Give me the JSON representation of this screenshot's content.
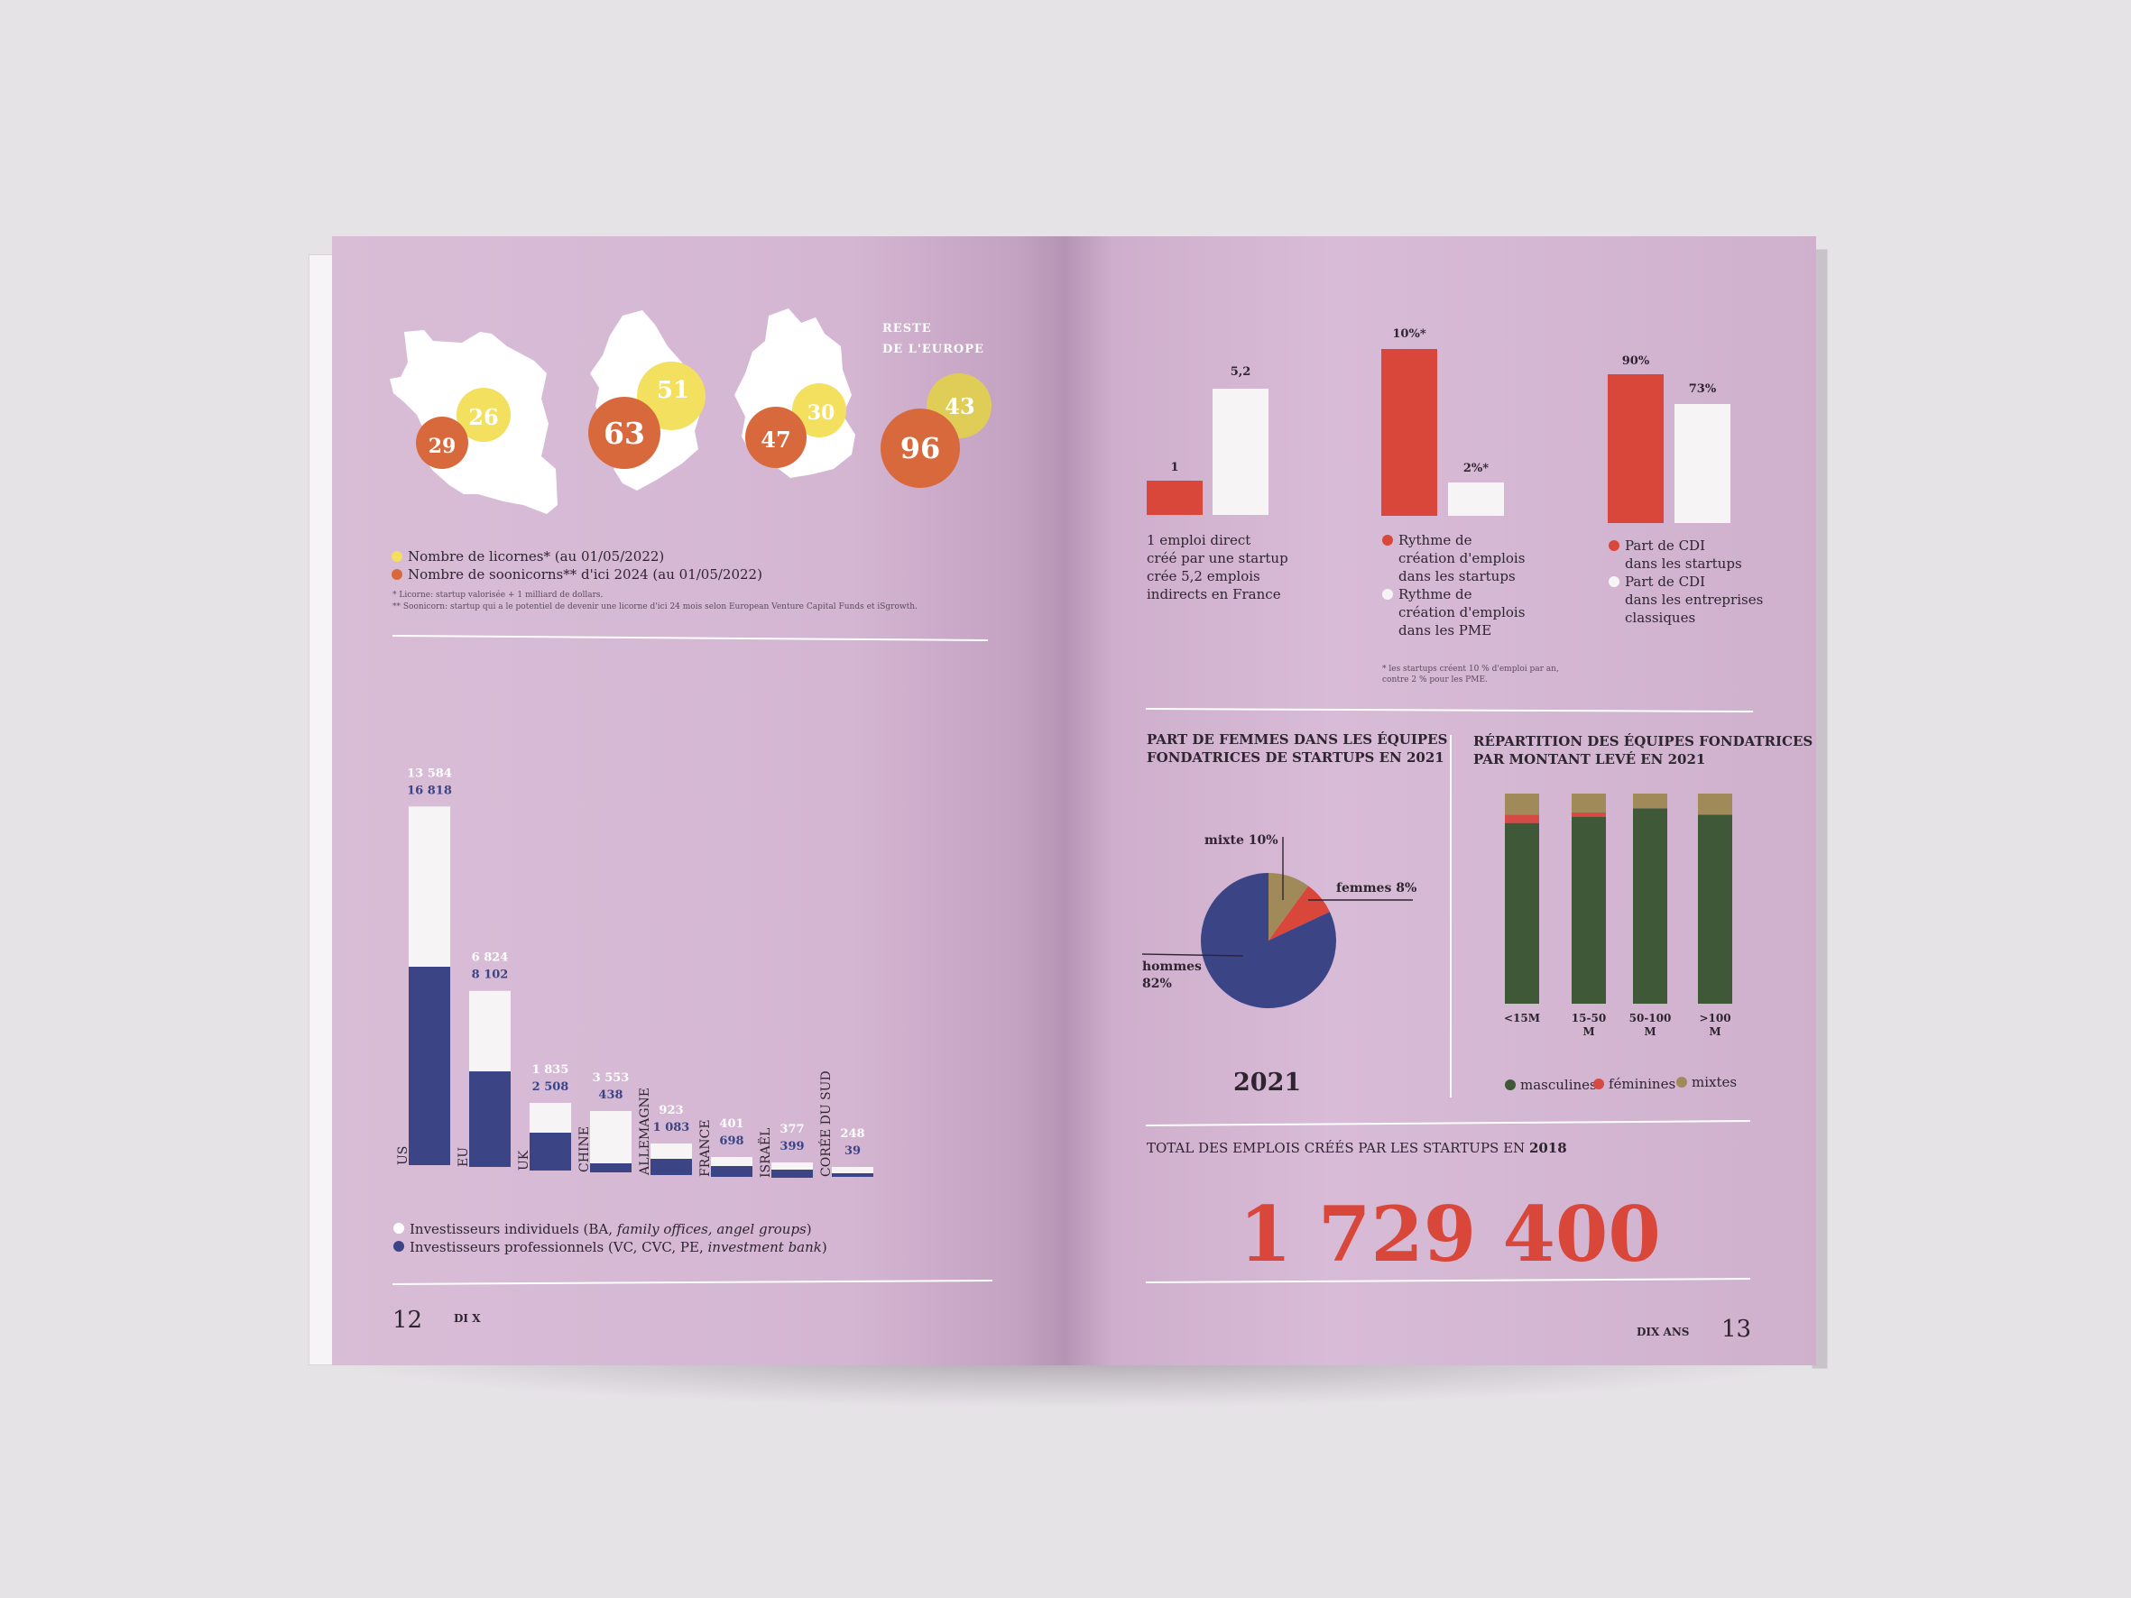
{
  "left_page": {
    "maps": {
      "rest_label_line1": "RESTE",
      "rest_label_line2": "DE L'EUROPE",
      "groups": [
        {
          "name": "france",
          "unicorns": "26",
          "soonicorns": "29"
        },
        {
          "name": "uk",
          "unicorns": "51",
          "soonicorns": "63"
        },
        {
          "name": "germany",
          "unicorns": "30",
          "soonicorns": "47"
        },
        {
          "name": "rest-of-europe",
          "unicorns": "43",
          "soonicorns": "96"
        }
      ],
      "legend": {
        "unicorns": "Nombre de licornes* (au 01/05/2022)",
        "soonicorns": "Nombre de soonicorns** d'ici 2024 (au 01/05/2022)"
      },
      "footnote1": "* Licorne: startup valorisée + 1 milliard de dollars.",
      "footnote2": "** Soonicorn: startup qui a le potentiel de devenir une licorne d'ici 24 mois selon European Venture Capital Funds et iSgrowth."
    },
    "investors_chart": {
      "legend_individual_prefix": "Investisseurs individuels (BA, ",
      "legend_individual_italic": "family offices, angel groups",
      "legend_individual_suffix": ")",
      "legend_professional_prefix": "Investisseurs professionnels (VC, CVC, PE, ",
      "legend_professional_italic": "investment bank",
      "legend_professional_suffix": ")"
    },
    "page_number": "12",
    "brand": "DI X"
  },
  "right_page": {
    "jobs_chart": {
      "value_red": "1",
      "value_white": "5,2",
      "caption": [
        "1 emploi direct",
        "créé par une startup",
        "crée 5,2 emplois",
        "indirects en France"
      ]
    },
    "rhythm_chart": {
      "value_red": "10%*",
      "value_white": "2%*",
      "legend_red": [
        "Rythme de",
        "création d'emplois",
        "dans les startups"
      ],
      "legend_white": [
        "Rythme de",
        "création d'emplois",
        "dans les PME"
      ],
      "footnote": [
        "* les startups créent 10 % d'emploi par an,",
        "contre 2 % pour les PME."
      ]
    },
    "cdi_chart": {
      "value_red": "90%",
      "value_white": "73%",
      "legend_red": [
        "Part de CDI",
        "dans les startups"
      ],
      "legend_white": [
        "Part de CDI",
        "dans les entreprises",
        "classiques"
      ]
    },
    "women_pie": {
      "title_line1": "PART DE FEMMES DANS LES ÉQUIPES",
      "title_line2": "FONDATRICES DE STARTUPS EN 2021",
      "label_mixte": "mixte 10%",
      "label_femmes": "femmes 8%",
      "label_hommes_1": "hommes",
      "label_hommes_2": "82%",
      "year": "2021"
    },
    "teams_chart": {
      "title_line1": "RÉPARTITION DES ÉQUIPES FONDATRICES",
      "title_line2": "PAR MONTANT LEVÉ EN 2021",
      "legend_masc": "masculines",
      "legend_fem": "féminines",
      "legend_mix": "mixtes"
    },
    "total": {
      "label_prefix": "TOTAL DES EMPLOIS CRÉÉS PAR LES STARTUPS EN ",
      "label_year": "2018",
      "value": "1 729 400"
    },
    "brand": "DIX ANS",
    "page_number": "13"
  },
  "colors": {
    "page": "#d8bad6",
    "navy": "#3b4585",
    "white": "#f7f4f6",
    "red": "#d9473b",
    "orange": "#d8693c",
    "yellow": "#f2e05e",
    "green": "#3f5838",
    "khaki": "#a08a5a",
    "pink_red": "#d64a45"
  },
  "chart_data": [
    {
      "type": "bar",
      "title": "",
      "categories": [
        "US",
        "EU",
        "UK",
        "CHINE",
        "ALLEMAGNE",
        "FRANCE",
        "ISRAËL",
        "CORÉE DU SUD"
      ],
      "series": [
        {
          "name": "Investisseurs individuels (BA, family offices, angel groups)",
          "values": [
            13584,
            6824,
            1835,
            3553,
            923,
            401,
            377,
            248
          ]
        },
        {
          "name": "Investisseurs professionnels (VC, CVC, PE, investment bank)",
          "values": [
            16818,
            8102,
            2508,
            438,
            1083,
            698,
            399,
            39
          ]
        }
      ],
      "value_labels_individual": [
        "13 584",
        "6 824",
        "1 835",
        "3 553",
        "923",
        "401",
        "377",
        "248"
      ],
      "value_labels_professional": [
        "16 818",
        "8 102",
        "2 508",
        "438",
        "1 083",
        "698",
        "399",
        "39"
      ],
      "stacked": true,
      "legend": "bottom-left",
      "grid": false
    },
    {
      "type": "bar",
      "categories": [
        "direct",
        "indirects"
      ],
      "values": [
        1,
        5.2
      ]
    },
    {
      "type": "bar",
      "categories": [
        "startups",
        "PME"
      ],
      "values": [
        10,
        2
      ]
    },
    {
      "type": "bar",
      "categories": [
        "startups",
        "entreprises classiques"
      ],
      "values": [
        90,
        73
      ]
    },
    {
      "type": "pie",
      "categories": [
        "hommes",
        "mixte",
        "femmes"
      ],
      "values": [
        82,
        10,
        8
      ]
    },
    {
      "type": "bar",
      "stacked": true,
      "categories": [
        "<15M",
        "15-50 M",
        "50-100 M",
        ">100 M"
      ],
      "series": [
        {
          "name": "masculines",
          "values": [
            86,
            89,
            93,
            90
          ]
        },
        {
          "name": "féminines",
          "values": [
            4,
            2,
            0,
            0
          ]
        },
        {
          "name": "mixtes",
          "values": [
            10,
            9,
            7,
            10
          ]
        }
      ],
      "legend": "bottom"
    }
  ]
}
